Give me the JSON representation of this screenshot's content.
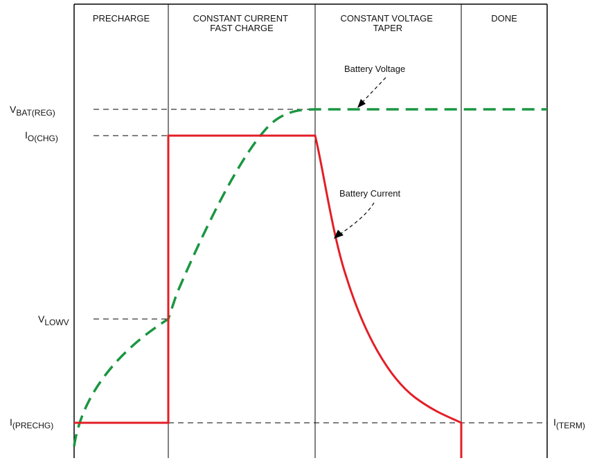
{
  "phases": [
    {
      "line1": "PRECHARGE",
      "line2": ""
    },
    {
      "line1": "CONSTANT CURRENT",
      "line2": "FAST CHARGE"
    },
    {
      "line1": "CONSTANT VOLTAGE",
      "line2": "TAPER"
    },
    {
      "line1": "DONE",
      "line2": ""
    }
  ],
  "levels": {
    "vbat_reg": {
      "main": "V",
      "sub": "BAT(REG)"
    },
    "io_chg": {
      "main": "I",
      "sub": "O(CHG)"
    },
    "vlowv": {
      "main": "V",
      "sub": "LOWV"
    },
    "iprechg": {
      "main": "I",
      "sub": "(PRECHG)"
    },
    "iterm": {
      "main": "I",
      "sub": "(TERM)"
    }
  },
  "annotations": {
    "battery_voltage": "Battery Voltage",
    "battery_current": "Battery Current"
  },
  "colors": {
    "voltage_curve": "#1a9641",
    "current_curve": "#e31e26",
    "lines": "#000000"
  }
}
